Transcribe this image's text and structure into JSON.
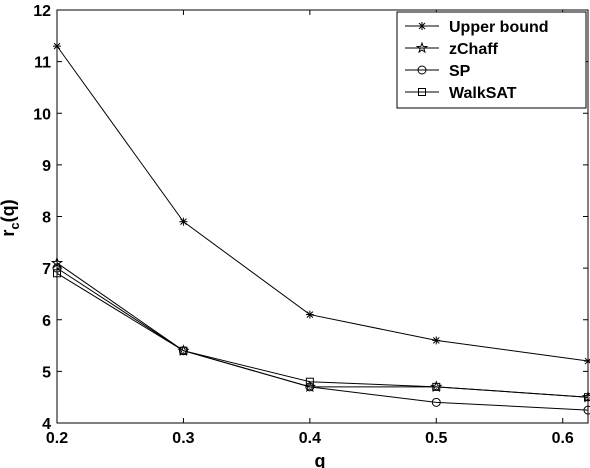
{
  "chart_data": {
    "type": "line",
    "xlabel": "q",
    "ylabel_main": "r",
    "ylabel_sub": "c",
    "ylabel_tail": "(q)",
    "xlim": [
      0.2,
      0.62
    ],
    "ylim": [
      4,
      12
    ],
    "xticks": [
      0.2,
      0.3,
      0.4,
      0.5,
      0.6
    ],
    "xtick_labels": [
      "0.2",
      "0.3",
      "0.4",
      "0.5",
      "0.6"
    ],
    "yticks": [
      4,
      5,
      6,
      7,
      8,
      9,
      10,
      11,
      12
    ],
    "ytick_labels": [
      "4",
      "5",
      "6",
      "7",
      "8",
      "9",
      "10",
      "11",
      "12"
    ],
    "grid": false,
    "legend_position": "top-right",
    "x": [
      0.2,
      0.3,
      0.4,
      0.5,
      0.62
    ],
    "series": [
      {
        "name": "Upper bound",
        "marker": "asterisk",
        "values": [
          11.3,
          7.9,
          6.1,
          5.6,
          5.2
        ]
      },
      {
        "name": "zChaff",
        "marker": "star",
        "values": [
          7.1,
          5.4,
          4.7,
          4.7,
          4.5
        ]
      },
      {
        "name": "SP",
        "marker": "circle",
        "values": [
          7.0,
          5.4,
          4.7,
          4.4,
          4.25
        ]
      },
      {
        "name": "WalkSAT",
        "marker": "square",
        "values": [
          6.9,
          5.4,
          4.8,
          4.7,
          4.5
        ]
      }
    ]
  }
}
